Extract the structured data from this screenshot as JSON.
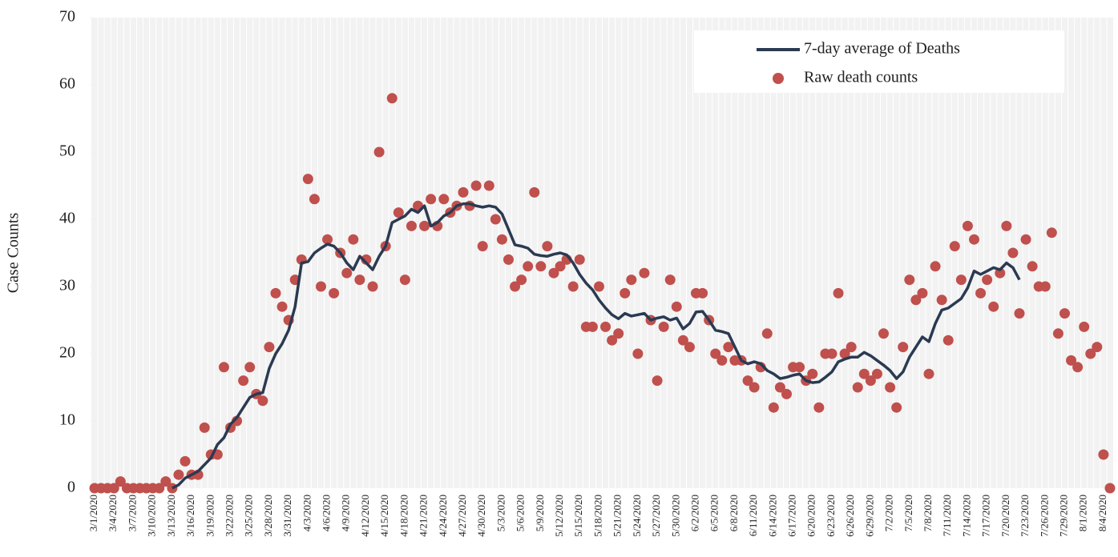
{
  "chart_data": {
    "type": "line",
    "y_label": "Case Counts",
    "categories": [
      "3/1/2020",
      null,
      null,
      "3/4/2020",
      null,
      null,
      "3/7/2020",
      null,
      null,
      "3/10/2020",
      null,
      null,
      "3/13/2020",
      null,
      null,
      "3/16/2020",
      null,
      null,
      "3/19/2020",
      null,
      null,
      "3/22/2020",
      null,
      null,
      "3/25/2020",
      null,
      null,
      "3/28/2020",
      null,
      null,
      "3/31/2020",
      null,
      null,
      "4/3/2020",
      null,
      null,
      "4/6/2020",
      null,
      null,
      "4/9/2020",
      null,
      null,
      "4/12/2020",
      null,
      null,
      "4/15/2020",
      null,
      null,
      "4/18/2020",
      null,
      null,
      "4/21/2020",
      null,
      null,
      "4/24/2020",
      null,
      null,
      "4/27/2020",
      null,
      null,
      "4/30/2020",
      null,
      null,
      "5/3/2020",
      null,
      null,
      "5/6/2020",
      null,
      null,
      "5/9/2020",
      null,
      null,
      "5/12/2020",
      null,
      null,
      "5/15/2020",
      null,
      null,
      "5/18/2020",
      null,
      null,
      "5/21/2020",
      null,
      null,
      "5/24/2020",
      null,
      null,
      "5/27/2020",
      null,
      null,
      "5/30/2020",
      null,
      null,
      "6/2/2020",
      null,
      null,
      "6/5/2020",
      null,
      null,
      "6/8/2020",
      null,
      null,
      "6/11/2020",
      null,
      null,
      "6/14/2020",
      null,
      null,
      "6/17/2020",
      null,
      null,
      "6/20/2020",
      null,
      null,
      "6/23/2020",
      null,
      null,
      "6/26/2020",
      null,
      null,
      "6/29/2020",
      null,
      null,
      "7/2/2020",
      null,
      null,
      "7/5/2020",
      null,
      null,
      "7/8/2020",
      null,
      null,
      "7/11/2020",
      null,
      null,
      "7/14/2020",
      null,
      null,
      "7/17/2020",
      null,
      null,
      "7/20/2020",
      null,
      null,
      "7/23/2020",
      null,
      null,
      "7/26/2020",
      null,
      null,
      "7/29/2020",
      null,
      null,
      "8/1/2020",
      null,
      null,
      "8/4/2020",
      null
    ],
    "series": [
      {
        "name": "7-day average of Deaths",
        "color": "#2b3a52",
        "mark": "line",
        "values": [
          null,
          null,
          null,
          null,
          null,
          null,
          null,
          null,
          null,
          null,
          null,
          null,
          0,
          0.5,
          1.5,
          2,
          2.5,
          3.5,
          4.5,
          6.5,
          7.5,
          9.5,
          10.5,
          12,
          13.5,
          14,
          14.2,
          17.8,
          20,
          21.5,
          23.5,
          27,
          33.5,
          33.7,
          35,
          35.7,
          36.3,
          36,
          35,
          33.5,
          32.5,
          34.5,
          33.5,
          32.5,
          34.5,
          36,
          39.5,
          40,
          40.5,
          41.5,
          41,
          42,
          39,
          39.5,
          40.5,
          41,
          42,
          42.3,
          42.3,
          42,
          41.8,
          42,
          41.8,
          40.8,
          38.5,
          36.2,
          36,
          35.7,
          34.8,
          34.6,
          34.5,
          34.8,
          35,
          34.7,
          33.5,
          31.8,
          30.5,
          29.5,
          28,
          26.8,
          25.8,
          25.2,
          26,
          25.6,
          25.8,
          26,
          25,
          25.3,
          25.5,
          25,
          25.3,
          23.7,
          24.5,
          26.2,
          26.3,
          25,
          23.5,
          23.3,
          23,
          21,
          19,
          18.5,
          18.8,
          18.5,
          17.5,
          17,
          16.3,
          16.5,
          16.8,
          17,
          16,
          15.7,
          15.8,
          16.5,
          17.3,
          18.8,
          19.2,
          19.5,
          19.5,
          20.2,
          19.7,
          19,
          18.3,
          17.5,
          16.3,
          17.3,
          19.5,
          21,
          22.5,
          21.8,
          24.5,
          26.5,
          26.8,
          27.5,
          28.2,
          29.8,
          32.3,
          31.8,
          32.3,
          32.8,
          32.5,
          33.5,
          32.8,
          31,
          null,
          null,
          null,
          null,
          null,
          null,
          null,
          null,
          null,
          null,
          null,
          null,
          null,
          null
        ]
      },
      {
        "name": "Raw death counts",
        "color": "#c0504d",
        "mark": "dot",
        "values": [
          0,
          0,
          0,
          0,
          1,
          0,
          0,
          0,
          0,
          0,
          0,
          1,
          0,
          2,
          4,
          2,
          2,
          9,
          5,
          5,
          18,
          9,
          10,
          16,
          18,
          14,
          13,
          21,
          29,
          27,
          25,
          31,
          34,
          46,
          43,
          30,
          37,
          29,
          35,
          32,
          37,
          31,
          34,
          30,
          50,
          36,
          58,
          41,
          31,
          39,
          42,
          39,
          43,
          39,
          43,
          41,
          42,
          44,
          42,
          45,
          36,
          45,
          40,
          37,
          34,
          30,
          31,
          33,
          44,
          33,
          36,
          32,
          33,
          34,
          30,
          34,
          24,
          24,
          30,
          24,
          22,
          23,
          29,
          31,
          20,
          32,
          25,
          16,
          24,
          31,
          27,
          22,
          21,
          29,
          29,
          25,
          20,
          19,
          21,
          19,
          19,
          16,
          15,
          18,
          23,
          12,
          15,
          14,
          18,
          18,
          16,
          17,
          12,
          20,
          20,
          29,
          20,
          21,
          15,
          17,
          16,
          17,
          23,
          15,
          12,
          21,
          31,
          28,
          29,
          17,
          33,
          28,
          22,
          36,
          31,
          39,
          37,
          29,
          31,
          27,
          32,
          39,
          35,
          26,
          37,
          33,
          30,
          30,
          38,
          23,
          26,
          19,
          18,
          24,
          20,
          21,
          5,
          0
        ]
      }
    ],
    "ylim": [
      0,
      70
    ],
    "yticks": [
      0,
      10,
      20,
      30,
      40,
      50,
      60,
      70
    ],
    "grid": "vertical",
    "legend": "top-right"
  }
}
